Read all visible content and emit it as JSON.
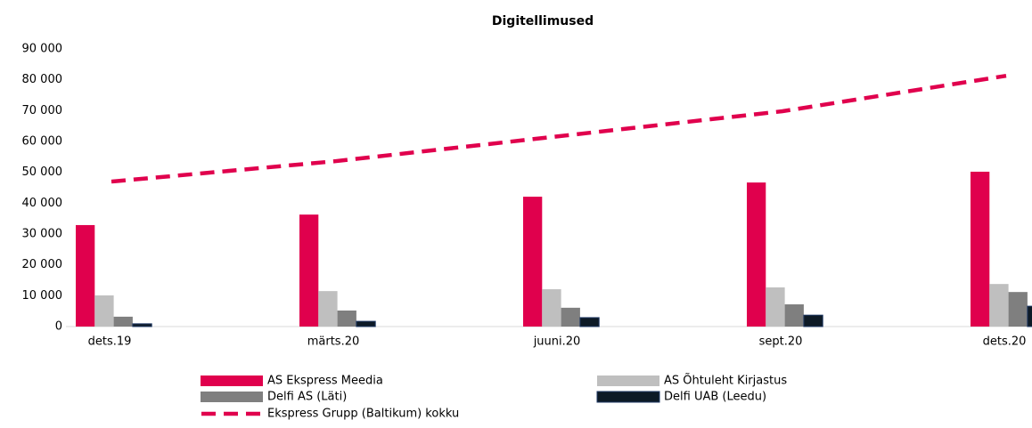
{
  "chart_data": {
    "type": "bar",
    "title": "Digitellimused",
    "categories": [
      "dets.19",
      "märts.20",
      "juuni.20",
      "sept.20",
      "dets.20"
    ],
    "series": [
      {
        "name": "AS Ekspress Meedia",
        "color": "#e0004d",
        "values": [
          32900,
          36300,
          42100,
          46700,
          50200
        ]
      },
      {
        "name": "AS Õhtuleht Kirjastus",
        "color": "#bfbfbf",
        "values": [
          10100,
          11500,
          12100,
          12700,
          13800
        ]
      },
      {
        "name": "Delfi AS (Läti)",
        "color": "#7f7f7f",
        "values": [
          3200,
          5200,
          6100,
          7200,
          11200
        ]
      },
      {
        "name": "Delfi UAB (Leedu)",
        "color": "#0d1a26",
        "values": [
          900,
          1700,
          2900,
          3700,
          6600
        ]
      },
      {
        "name": "Ekspress Grupp (Baltikum) kokku",
        "color": "#e0004d",
        "type": "line",
        "values": [
          47000,
          53600,
          61700,
          69800,
          81300
        ]
      }
    ],
    "ylim": [
      0,
      90000
    ],
    "yticks": [
      0,
      {
        "value": 10000,
        "label": "10 000"
      },
      {
        "value": 20000,
        "label": "20 000"
      },
      {
        "value": 30000,
        "label": "30 000"
      },
      {
        "value": 40000,
        "label": "40 000"
      },
      {
        "value": 50000,
        "label": "50 000"
      },
      {
        "value": 60000,
        "label": "60 000"
      },
      {
        "value": 70000,
        "label": "70 000"
      },
      {
        "value": 80000,
        "label": "80 000"
      },
      {
        "value": 90000,
        "label": "90 000"
      }
    ],
    "legend": "bottom"
  }
}
